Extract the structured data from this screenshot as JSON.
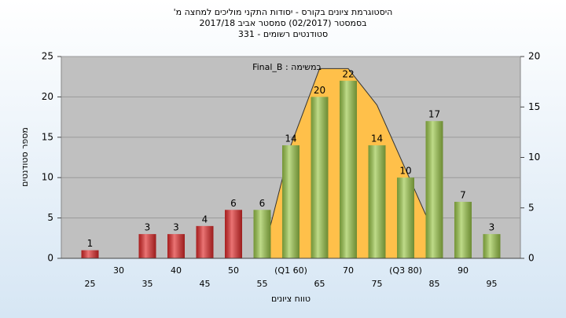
{
  "chart_data": {
    "type": "bar",
    "title": [
      "היסטוגרמת ציונים בקורס - יסודות התקני מוליכים למחצה מ'",
      "בסמסטר (02/2017) סמסטר אביב 2017/18",
      "סטודנטים רשומים - 331"
    ],
    "annotation": "Final_B : במשימה",
    "x_label": "טווח ציונים",
    "y_label": "מספר סטודנטים",
    "categories": [
      "25",
      "30",
      "35",
      "40",
      "45",
      "50",
      "55",
      "(Q1 60)",
      "65",
      "70",
      "75",
      "(Q3 80)",
      "85",
      "90",
      "95"
    ],
    "values": [
      1,
      0,
      3,
      3,
      4,
      6,
      6,
      14,
      20,
      22,
      14,
      10,
      17,
      7,
      3
    ],
    "colors": [
      "#e02a2a",
      "#e02a2a",
      "#e02a2a",
      "#e02a2a",
      "#e02a2a",
      "#e02a2a",
      "#9cc84a",
      "#9cc84a",
      "#9cc84a",
      "#9cc84a",
      "#9cc84a",
      "#9cc84a",
      "#9cc84a",
      "#9cc84a",
      "#9cc84a"
    ],
    "curve": {
      "values": [
        null,
        null,
        null,
        null,
        null,
        null,
        0,
        14,
        23.5,
        23.5,
        19,
        11,
        3,
        null,
        null
      ],
      "color": "#ffc04a",
      "line_color": "#333333"
    },
    "ylim": [
      0,
      25
    ],
    "yticks": [
      0,
      5,
      10,
      15,
      20,
      25
    ],
    "y2lim": [
      0,
      20
    ],
    "y2ticks": [
      0,
      5,
      10,
      15,
      20
    ],
    "grid": true
  }
}
